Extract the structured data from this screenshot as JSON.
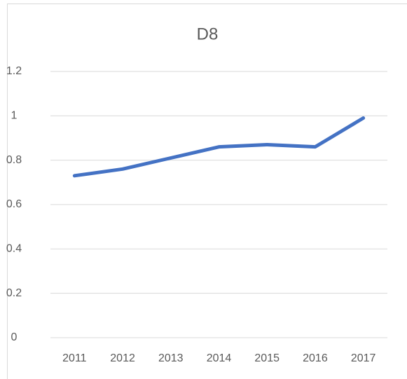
{
  "chart_data": {
    "type": "line",
    "title": "D8",
    "categories": [
      "2011",
      "2012",
      "2013",
      "2014",
      "2015",
      "2016",
      "2017"
    ],
    "values": [
      0.73,
      0.76,
      0.81,
      0.86,
      0.87,
      0.86,
      0.99
    ],
    "color": "#4472c4",
    "ylim": [
      0,
      1.2
    ],
    "yticks": [
      0,
      0.2,
      0.4,
      0.6,
      0.8,
      1,
      1.2
    ],
    "grid": true
  }
}
